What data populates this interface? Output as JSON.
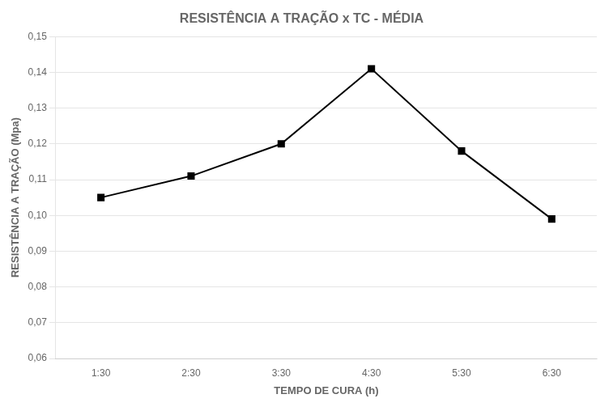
{
  "chart_data": {
    "type": "line",
    "title": "RESISTÊNCIA A TRAÇÃO x TC - MÉDIA",
    "xlabel": "TEMPO DE CURA (h)",
    "ylabel": "RESISTÊNCIA A TRAÇÃO (Mpa)",
    "x": [
      1.5,
      2.5,
      3.5,
      4.5,
      5.5,
      6.5
    ],
    "values": [
      0.105,
      0.111,
      0.12,
      0.141,
      0.118,
      0.099
    ],
    "color": "#000000",
    "marker": "square",
    "xlim": [
      1.0,
      7.0
    ],
    "xticks": [
      {
        "value": 1.5,
        "label": "1:30"
      },
      {
        "value": 2.5,
        "label": "2:30"
      },
      {
        "value": 3.5,
        "label": "3:30"
      },
      {
        "value": 4.5,
        "label": "4:30"
      },
      {
        "value": 5.5,
        "label": "5:30"
      },
      {
        "value": 6.5,
        "label": "6:30"
      }
    ],
    "ylim": [
      0.06,
      0.15
    ],
    "yticks": [
      {
        "value": 0.06,
        "label": "0,06"
      },
      {
        "value": 0.07,
        "label": "0,07"
      },
      {
        "value": 0.08,
        "label": "0,08"
      },
      {
        "value": 0.09,
        "label": "0,09"
      },
      {
        "value": 0.1,
        "label": "0,10"
      },
      {
        "value": 0.11,
        "label": "0,11"
      },
      {
        "value": 0.12,
        "label": "0,12"
      },
      {
        "value": 0.13,
        "label": "0,13"
      },
      {
        "value": 0.14,
        "label": "0,14"
      },
      {
        "value": 0.15,
        "label": "0,15"
      }
    ],
    "grid": "y"
  }
}
